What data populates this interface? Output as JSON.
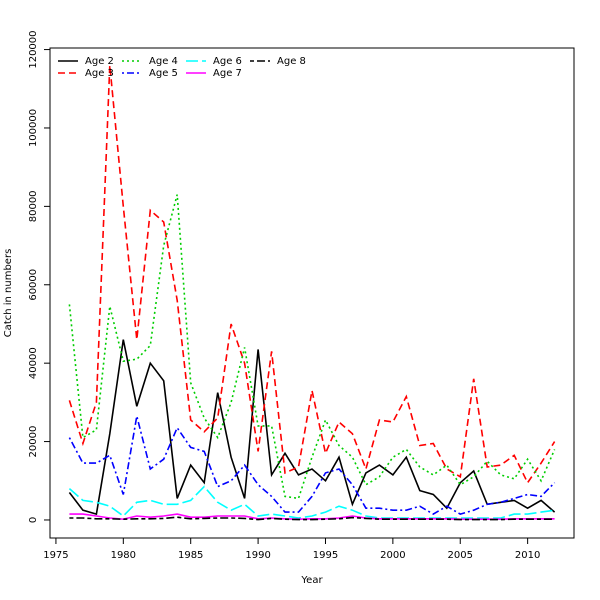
{
  "chart_data": {
    "type": "line",
    "xlabel": "Year",
    "ylabel": "Catch in numbers",
    "x": [
      1976,
      1977,
      1978,
      1979,
      1980,
      1981,
      1982,
      1983,
      1984,
      1985,
      1986,
      1987,
      1988,
      1989,
      1990,
      1991,
      1992,
      1993,
      1994,
      1995,
      1996,
      1997,
      1998,
      1999,
      2000,
      2001,
      2002,
      2003,
      2004,
      2005,
      2006,
      2007,
      2008,
      2009,
      2010,
      2011,
      2012
    ],
    "xlim": [
      1974.56,
      2013.44
    ],
    "xticks": [
      1975,
      1980,
      1985,
      1990,
      1995,
      2000,
      2005,
      2010
    ],
    "ylim": [
      -4600,
      120400
    ],
    "yticks": [
      0,
      20000,
      40000,
      60000,
      80000,
      100000,
      120000
    ],
    "legend": "top-left",
    "series": [
      {
        "name": "Age 2",
        "color": "#000000",
        "linestyle": "solid",
        "values": [
          7000,
          2500,
          1500,
          22000,
          46000,
          29000,
          40000,
          35500,
          5500,
          14000,
          9500,
          32500,
          16000,
          5500,
          43500,
          11500,
          17000,
          11500,
          13000,
          10000,
          16000,
          4000,
          12000,
          14000,
          11500,
          16000,
          7500,
          6500,
          3000,
          9500,
          12500,
          4000,
          4500,
          5000,
          3000,
          5000,
          2000
        ]
      },
      {
        "name": "Age 3",
        "color": "#ff0000",
        "linestyle": "dashed",
        "values": [
          30500,
          19500,
          30000,
          116000,
          80000,
          46000,
          79000,
          76000,
          56000,
          25500,
          22500,
          26000,
          50000,
          40000,
          17500,
          43000,
          12000,
          13500,
          33000,
          17000,
          25000,
          22000,
          13000,
          25500,
          25000,
          31500,
          19000,
          19500,
          13000,
          11000,
          36000,
          13500,
          14000,
          16500,
          9500,
          14500,
          20000
        ]
      },
      {
        "name": "Age 4",
        "color": "#00cd00",
        "linestyle": "dotted",
        "values": [
          55000,
          21000,
          23000,
          54500,
          40500,
          41000,
          44500,
          70000,
          83000,
          35000,
          26000,
          21000,
          30000,
          44000,
          24000,
          24000,
          6000,
          5500,
          16000,
          25500,
          19000,
          16000,
          9000,
          11000,
          16000,
          18000,
          13500,
          11500,
          14000,
          9000,
          11000,
          15000,
          11500,
          10500,
          15500,
          10000,
          18000
        ]
      },
      {
        "name": "Age 5",
        "color": "#0000ff",
        "linestyle": "dotdash",
        "values": [
          21000,
          14500,
          14500,
          16500,
          6500,
          26500,
          13000,
          15500,
          23500,
          18500,
          17500,
          8500,
          10000,
          14000,
          9000,
          6000,
          2000,
          2000,
          6000,
          12000,
          13000,
          9000,
          3000,
          3000,
          2500,
          2500,
          3500,
          1500,
          3500,
          1500,
          2500,
          4000,
          4500,
          5500,
          6500,
          6000,
          9500
        ]
      },
      {
        "name": "Age 6",
        "color": "#00ffff",
        "linestyle": "longdash",
        "values": [
          8000,
          5000,
          4500,
          3500,
          1000,
          4500,
          5000,
          4000,
          4000,
          5000,
          8500,
          4500,
          2500,
          4000,
          1000,
          1500,
          1000,
          500,
          1000,
          2000,
          3500,
          2500,
          1000,
          500,
          500,
          500,
          500,
          500,
          500,
          500,
          500,
          500,
          500,
          1500,
          1500,
          2000,
          2500
        ]
      },
      {
        "name": "Age 7",
        "color": "#ff00ff",
        "linestyle": "solid",
        "values": [
          1500,
          1500,
          1000,
          500,
          200,
          1000,
          700,
          1000,
          1500,
          700,
          700,
          1000,
          1000,
          1000,
          300,
          500,
          300,
          200,
          300,
          300,
          500,
          1000,
          500,
          300,
          300,
          300,
          300,
          300,
          300,
          200,
          200,
          200,
          200,
          300,
          300,
          300,
          300
        ]
      },
      {
        "name": "Age 8",
        "color": "#000000",
        "linestyle": "twodash",
        "values": [
          500,
          500,
          300,
          300,
          200,
          300,
          300,
          400,
          700,
          300,
          400,
          500,
          500,
          400,
          100,
          400,
          200,
          100,
          100,
          200,
          300,
          600,
          400,
          200,
          200,
          200,
          200,
          200,
          200,
          100,
          100,
          100,
          100,
          200,
          200,
          200,
          200
        ]
      }
    ]
  }
}
